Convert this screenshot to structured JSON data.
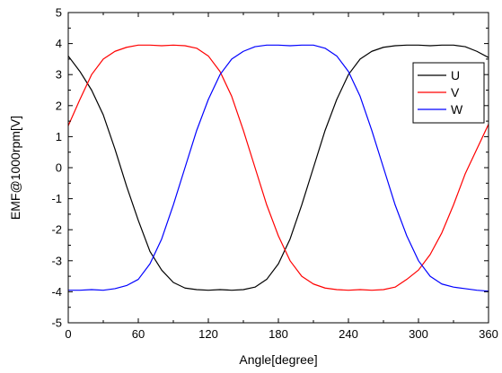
{
  "chart_data": {
    "type": "line",
    "title": "",
    "xlabel": "Angle[degree]",
    "ylabel": "EMF@1000rpm[V]",
    "xlim": [
      0,
      360
    ],
    "ylim": [
      -5,
      5
    ],
    "xticks": [
      0,
      60,
      120,
      180,
      240,
      300,
      360
    ],
    "yticks": [
      -5,
      -4,
      -3,
      -2,
      -1,
      0,
      1,
      2,
      3,
      4,
      5
    ],
    "grid": false,
    "legend_position": "top-right",
    "x": [
      0,
      10,
      20,
      30,
      40,
      50,
      60,
      70,
      80,
      90,
      100,
      110,
      120,
      130,
      140,
      150,
      160,
      170,
      180,
      190,
      200,
      210,
      220,
      230,
      240,
      250,
      260,
      270,
      280,
      290,
      300,
      310,
      320,
      330,
      340,
      350,
      360
    ],
    "series": [
      {
        "name": "U",
        "color": "#000000",
        "values": [
          3.6,
          3.1,
          2.5,
          1.7,
          0.6,
          -0.6,
          -1.7,
          -2.7,
          -3.3,
          -3.7,
          -3.88,
          -3.93,
          -3.95,
          -3.93,
          -3.95,
          -3.93,
          -3.85,
          -3.6,
          -3.1,
          -2.3,
          -1.2,
          0.0,
          1.2,
          2.2,
          3.0,
          3.5,
          3.75,
          3.88,
          3.93,
          3.95,
          3.95,
          3.93,
          3.95,
          3.95,
          3.9,
          3.75,
          3.55
        ]
      },
      {
        "name": "V",
        "color": "#ff0000",
        "values": [
          1.35,
          2.2,
          3.0,
          3.5,
          3.75,
          3.88,
          3.95,
          3.95,
          3.93,
          3.95,
          3.93,
          3.85,
          3.6,
          3.1,
          2.3,
          1.2,
          0.0,
          -1.2,
          -2.2,
          -3.0,
          -3.5,
          -3.75,
          -3.88,
          -3.93,
          -3.95,
          -3.93,
          -3.95,
          -3.93,
          -3.85,
          -3.6,
          -3.3,
          -2.8,
          -2.1,
          -1.2,
          -0.2,
          0.6,
          1.4
        ]
      },
      {
        "name": "W",
        "color": "#0000ff",
        "values": [
          -3.95,
          -3.95,
          -3.93,
          -3.95,
          -3.9,
          -3.8,
          -3.6,
          -3.1,
          -2.3,
          -1.2,
          0.0,
          1.2,
          2.2,
          3.0,
          3.5,
          3.75,
          3.9,
          3.95,
          3.95,
          3.93,
          3.95,
          3.95,
          3.85,
          3.6,
          3.1,
          2.3,
          1.2,
          0.0,
          -1.2,
          -2.2,
          -3.0,
          -3.5,
          -3.75,
          -3.85,
          -3.9,
          -3.95,
          -3.98
        ]
      }
    ]
  }
}
